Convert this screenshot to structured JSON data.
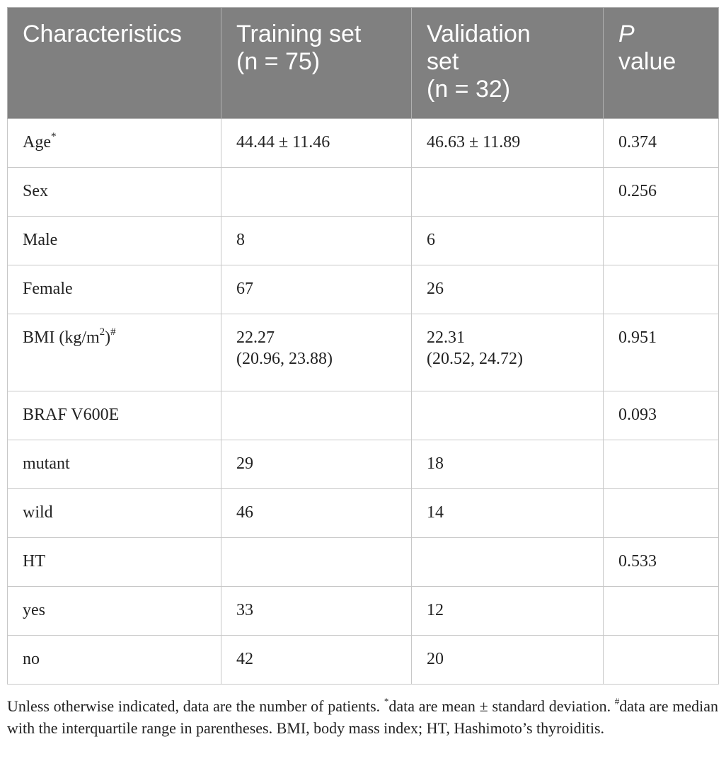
{
  "table": {
    "headers": {
      "characteristics": "Characteristics",
      "training_line1": "Training set",
      "training_line2": "(n = 75)",
      "validation_line1": "Validation",
      "validation_line2": "set",
      "validation_line3": "(n = 32)",
      "p_line1": "P",
      "p_line2": "value"
    },
    "rows": [
      {
        "label": "Age",
        "mark": "*",
        "training": "44.44 ± 11.46",
        "validation": "46.63 ± 11.89",
        "p": "0.374"
      },
      {
        "label": "Sex",
        "training": "",
        "validation": "",
        "p": "0.256"
      },
      {
        "label": "Male",
        "training": "8",
        "validation": "6",
        "p": ""
      },
      {
        "label": "Female",
        "training": "67",
        "validation": "26",
        "p": ""
      },
      {
        "label_pre": "BMI (kg/m",
        "label_sup": "2",
        "label_post": ")",
        "mark": "#",
        "training_line1": "22.27",
        "training_line2": "(20.96, 23.88)",
        "validation_line1": "22.31",
        "validation_line2": "(20.52, 24.72)",
        "p": "0.951"
      },
      {
        "label": "BRAF V600E",
        "training": "",
        "validation": "",
        "p": "0.093"
      },
      {
        "label": "mutant",
        "training": "29",
        "validation": "18",
        "p": ""
      },
      {
        "label": "wild",
        "training": "46",
        "validation": "14",
        "p": ""
      },
      {
        "label": "HT",
        "training": "",
        "validation": "",
        "p": "0.533"
      },
      {
        "label": "yes",
        "training": "33",
        "validation": "12",
        "p": ""
      },
      {
        "label": "no",
        "training": "42",
        "validation": "20",
        "p": ""
      }
    ]
  },
  "footnote": {
    "part1": "Unless otherwise indicated, data are the number of patients. ",
    "mark1": "*",
    "part2": "data are mean ± standard deviation. ",
    "mark2": "#",
    "part3": "data are median with the interquartile range in parentheses. BMI, body mass index; HT, Hashimoto’s thyroiditis."
  }
}
